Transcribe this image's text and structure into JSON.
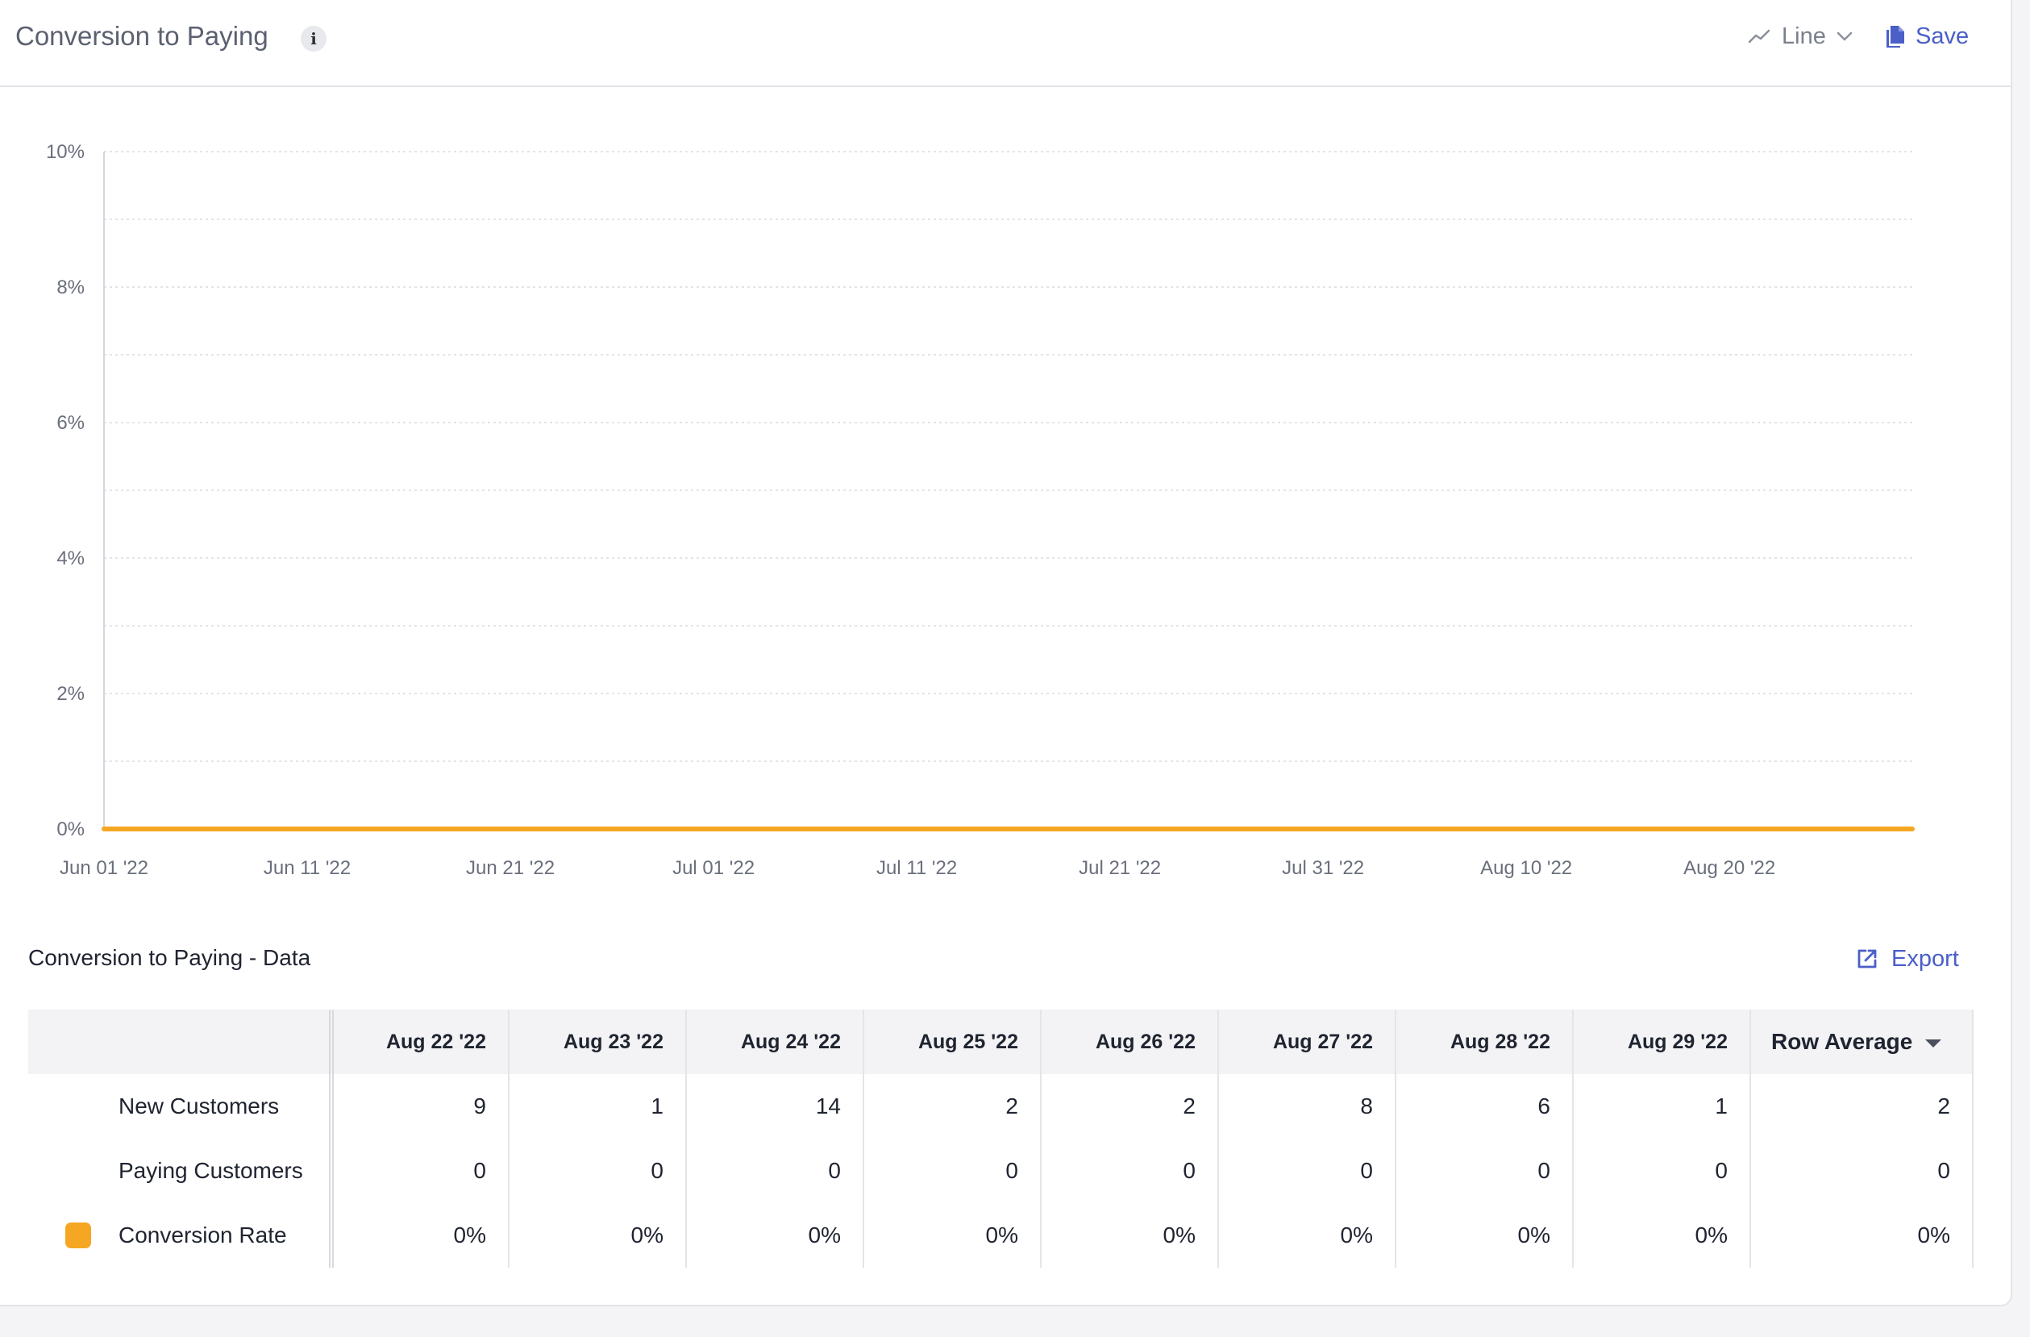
{
  "header": {
    "title": "Conversion to Paying",
    "chart_type_label": "Line",
    "save_label": "Save"
  },
  "colors": {
    "series": "#f5a623",
    "accent": "#4a5fc8"
  },
  "chart_data": {
    "type": "line",
    "title": "",
    "xlabel": "",
    "ylabel": "",
    "ylim": [
      0,
      10
    ],
    "y_ticks": [
      0,
      2,
      4,
      6,
      8,
      10
    ],
    "y_tick_labels": [
      "0%",
      "2%",
      "4%",
      "6%",
      "8%",
      "10%"
    ],
    "x_tick_labels": [
      "Jun 01 '22",
      "Jun 11 '22",
      "Jun 21 '22",
      "Jul 01 '22",
      "Jul 11 '22",
      "Jul 21 '22",
      "Jul 31 '22",
      "Aug 10 '22",
      "Aug 20 '22"
    ],
    "x_range": [
      "2022-06-01",
      "2022-08-29"
    ],
    "grid": true,
    "legend": "none",
    "series": [
      {
        "name": "Conversion Rate",
        "color": "#f5a623",
        "points": [
          [
            "2022-06-01",
            0
          ],
          [
            "2022-08-29",
            0
          ]
        ]
      }
    ]
  },
  "table": {
    "title": "Conversion to Paying - Data",
    "export_label": "Export",
    "columns": [
      "Aug 22 '22",
      "Aug 23 '22",
      "Aug 24 '22",
      "Aug 25 '22",
      "Aug 26 '22",
      "Aug 27 '22",
      "Aug 28 '22",
      "Aug 29 '22"
    ],
    "avg_label": "Row Average",
    "rows": [
      {
        "label": "New Customers",
        "values": [
          "9",
          "1",
          "14",
          "2",
          "2",
          "8",
          "6",
          "1"
        ],
        "avg": "2"
      },
      {
        "label": "Paying Customers",
        "values": [
          "0",
          "0",
          "0",
          "0",
          "0",
          "0",
          "0",
          "0"
        ],
        "avg": "0"
      },
      {
        "label": "Conversion Rate",
        "values": [
          "0%",
          "0%",
          "0%",
          "0%",
          "0%",
          "0%",
          "0%",
          "0%"
        ],
        "avg": "0%",
        "swatch": "#f5a623"
      }
    ]
  }
}
